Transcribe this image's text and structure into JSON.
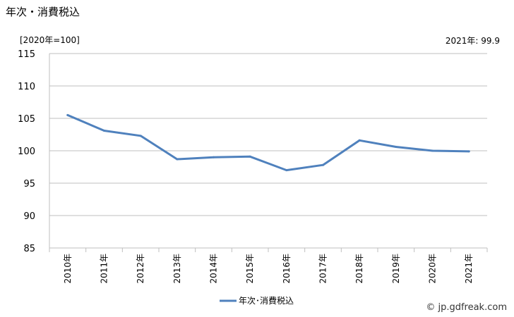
{
  "title": "年次・消費税込",
  "unit_label": "[2020年=100]",
  "latest_label": "2021年: 99.9",
  "credit": "© jp.gdfreak.com",
  "chart_data": {
    "type": "line",
    "title": "年次・消費税込",
    "categories": [
      "2010年",
      "2011年",
      "2012年",
      "2013年",
      "2014年",
      "2015年",
      "2016年",
      "2017年",
      "2018年",
      "2019年",
      "2020年",
      "2021年"
    ],
    "series": [
      {
        "name": "年次･消費税込",
        "values": [
          105.5,
          103.1,
          102.3,
          98.7,
          99.0,
          99.1,
          97.0,
          97.8,
          101.6,
          100.6,
          100.0,
          99.9
        ],
        "color": "#4f81bd"
      }
    ],
    "ylim": [
      85,
      115
    ],
    "yticks": [
      85,
      90,
      95,
      100,
      105,
      110,
      115
    ],
    "grid": true,
    "legend": "bottom"
  }
}
